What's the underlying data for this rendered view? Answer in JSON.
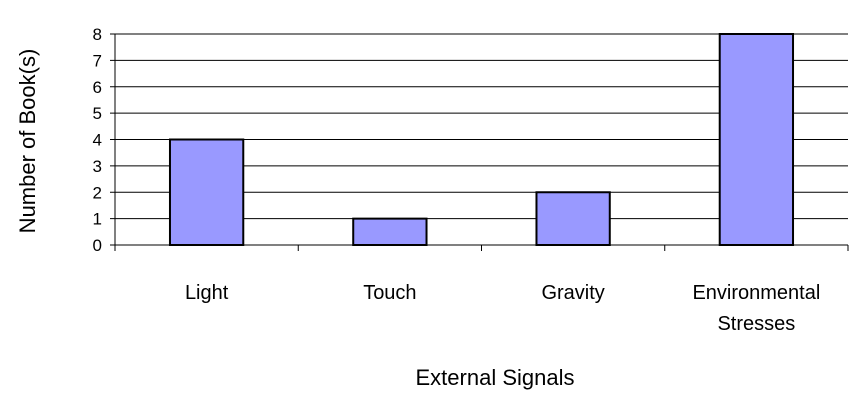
{
  "chart_data": {
    "type": "bar",
    "categories": [
      [
        "Light"
      ],
      [
        "Touch"
      ],
      [
        "Gravity"
      ],
      [
        "Environmental",
        "Stresses"
      ]
    ],
    "values": [
      4,
      1,
      2,
      8
    ],
    "xlabel": "External Signals",
    "ylabel": "Number of Book(s)",
    "ylim": [
      0,
      8
    ],
    "yticks": [
      0,
      1,
      2,
      3,
      4,
      5,
      6,
      7,
      8
    ],
    "grid": true,
    "legend": "none",
    "bar_color": "#9999ff",
    "bar_edge_color": "#000000"
  }
}
